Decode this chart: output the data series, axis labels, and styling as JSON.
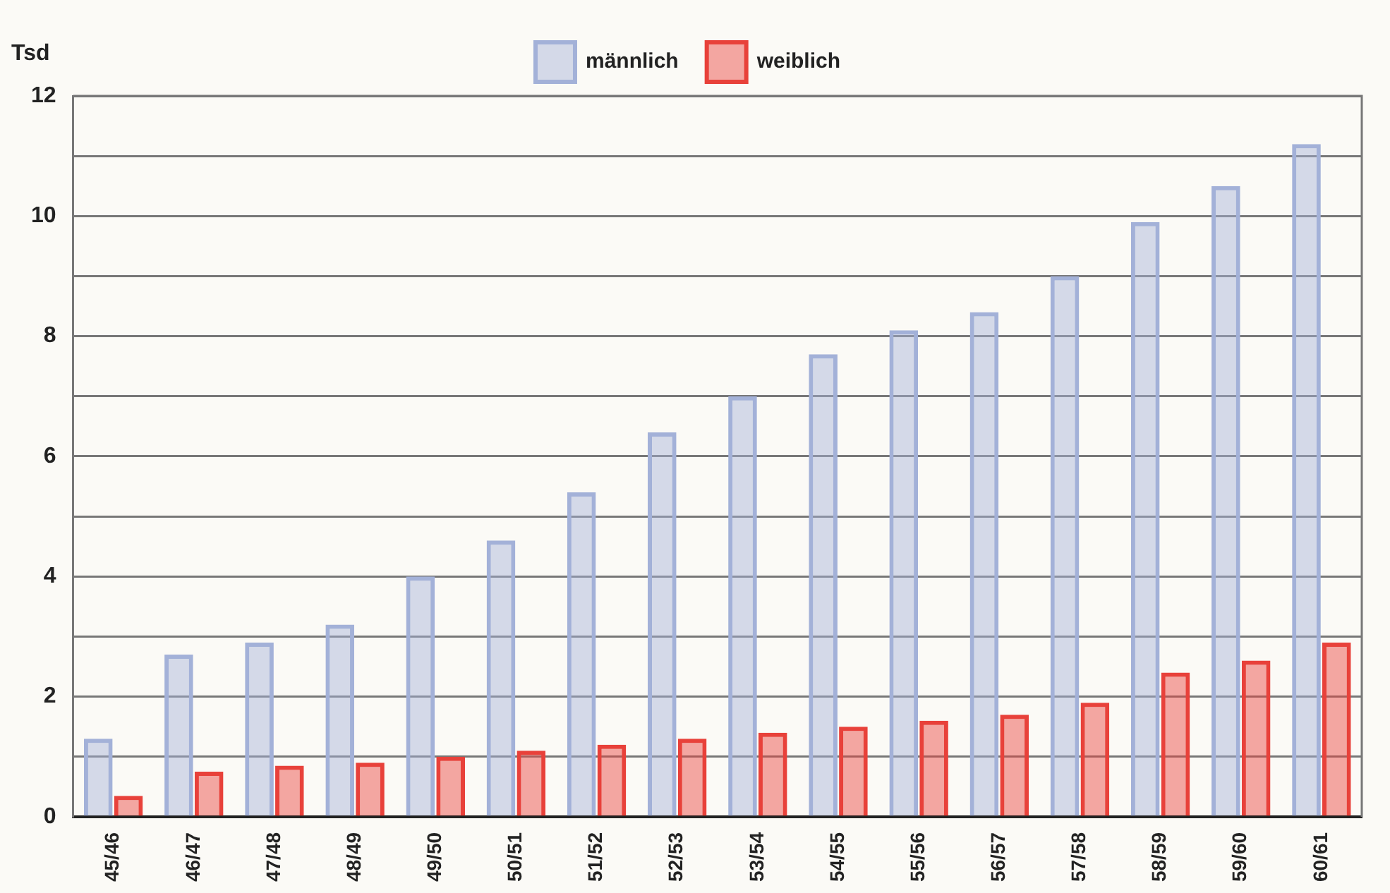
{
  "chart_data": {
    "type": "bar",
    "ylabel": "Tsd",
    "categories": [
      "45/46",
      "46/47",
      "47/48",
      "48/49",
      "49/50",
      "50/51",
      "51/52",
      "52/53",
      "53/54",
      "54/55",
      "55/56",
      "56/57",
      "57/58",
      "58/59",
      "59/60",
      "60/61"
    ],
    "series": [
      {
        "name": "männlich",
        "color": "#a3b1d8",
        "values": [
          1.3,
          2.7,
          2.9,
          3.2,
          4.0,
          4.6,
          5.4,
          6.4,
          7.0,
          7.7,
          8.1,
          8.4,
          9.0,
          9.9,
          10.5,
          11.2
        ]
      },
      {
        "name": "weiblich",
        "color": "#e8413a",
        "values": [
          0.35,
          0.75,
          0.85,
          0.9,
          1.0,
          1.1,
          1.2,
          1.3,
          1.4,
          1.5,
          1.6,
          1.7,
          1.9,
          2.4,
          2.6,
          2.9
        ]
      }
    ],
    "ylim": [
      0,
      12
    ],
    "yticks": [
      0,
      {
        "value": 1,
        "label": null
      },
      2,
      {
        "value": 3,
        "label": null
      },
      4,
      {
        "value": 5,
        "label": null
      },
      6,
      {
        "value": 7,
        "label": null
      },
      8,
      {
        "value": 9,
        "label": null
      },
      10,
      {
        "value": 11,
        "label": null
      },
      12
    ],
    "grid": "y",
    "legend": "top"
  }
}
